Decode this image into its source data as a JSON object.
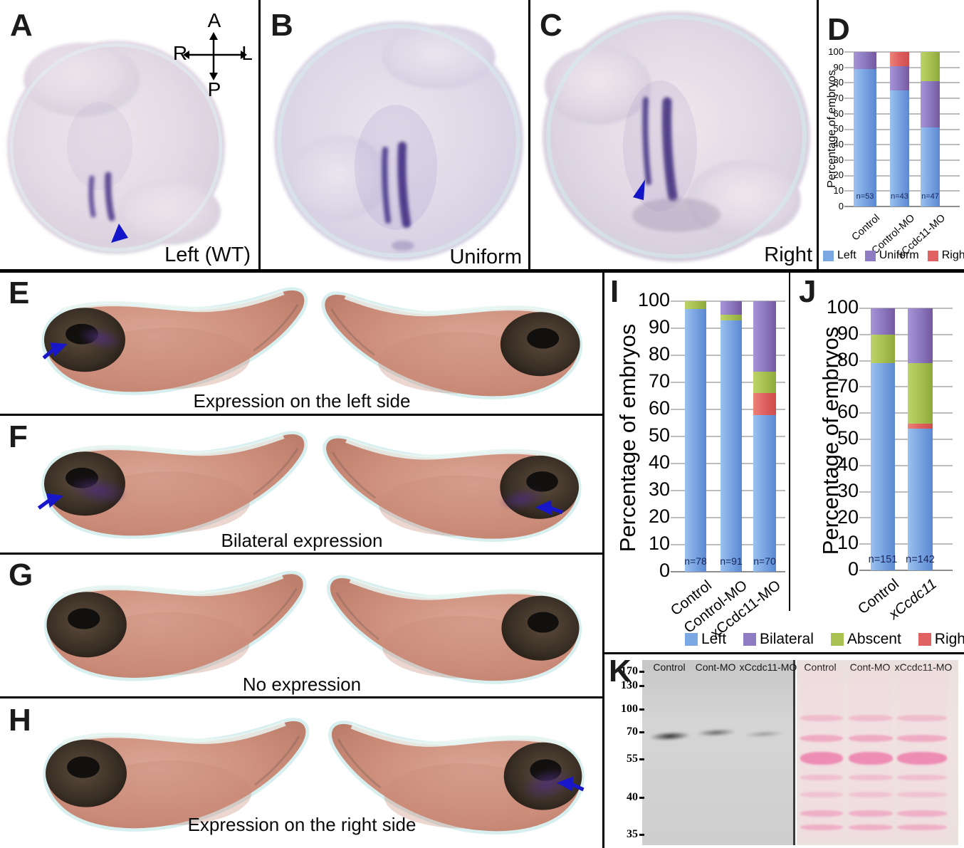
{
  "figure_panels": {
    "A": {
      "label": "A",
      "caption": "Left (WT)",
      "compass": {
        "top": "A",
        "bottom": "P",
        "left": "R",
        "right": "L"
      }
    },
    "B": {
      "label": "B",
      "caption": "Uniform"
    },
    "C": {
      "label": "C",
      "caption": "Right"
    },
    "D": {
      "label": "D"
    },
    "E": {
      "label": "E",
      "caption": "Expression on the left side"
    },
    "F": {
      "label": "F",
      "caption": "Bilateral expression"
    },
    "G": {
      "label": "G",
      "caption": "No expression"
    },
    "H": {
      "label": "H",
      "caption": "Expression on the right side"
    },
    "I": {
      "label": "I"
    },
    "J": {
      "label": "J"
    },
    "K": {
      "label": "K"
    }
  },
  "chart_data": [
    {
      "id": "chartD",
      "panel": "D",
      "type": "bar",
      "stacked": true,
      "ylabel": "Percentage of embryos",
      "ylim": [
        0,
        100
      ],
      "ytick_step": 10,
      "grid": true,
      "categories": [
        "Control",
        "Control-MO",
        "xCcdc11-MO"
      ],
      "n_labels": [
        "n=53",
        "n=43",
        "n=47"
      ],
      "series": [
        {
          "name": "Left",
          "values": [
            89,
            75,
            51
          ]
        },
        {
          "name": "Uniform",
          "values": [
            11,
            16,
            30
          ]
        },
        {
          "name": "Right",
          "values": [
            0,
            9,
            0
          ]
        },
        {
          "name": "Abscent",
          "values": [
            0,
            0,
            19
          ]
        }
      ],
      "legend": [
        "Left",
        "Uniform",
        "Right"
      ],
      "legend_position": "bottom"
    },
    {
      "id": "chartI",
      "panel": "I",
      "type": "bar",
      "stacked": true,
      "ylabel": "Percentage of embryos",
      "ylim": [
        0,
        100
      ],
      "ytick_step": 10,
      "grid": true,
      "categories": [
        "Control",
        "Control-MO",
        "xCcdc11-MO"
      ],
      "n_labels": [
        "n=78",
        "n=91",
        "n=70"
      ],
      "series": [
        {
          "name": "Left",
          "values": [
            97,
            93,
            58
          ]
        },
        {
          "name": "Right",
          "values": [
            0,
            0,
            8
          ]
        },
        {
          "name": "Abscent",
          "values": [
            3,
            2,
            8
          ]
        },
        {
          "name": "Bilateral",
          "values": [
            0,
            5,
            26
          ]
        }
      ],
      "legend_position": "shared-bottom"
    },
    {
      "id": "chartJ",
      "panel": "J",
      "type": "bar",
      "stacked": true,
      "ylabel": "Percentage of embryos",
      "ylim": [
        0,
        100
      ],
      "ytick_step": 10,
      "grid": true,
      "categories": [
        "Control",
        "xCcdc11"
      ],
      "italic_categories": [
        "xCcdc11"
      ],
      "n_labels": [
        "n=151",
        "n=142"
      ],
      "series": [
        {
          "name": "Left",
          "values": [
            79,
            54
          ]
        },
        {
          "name": "Right",
          "values": [
            0,
            2
          ]
        },
        {
          "name": "Abscent",
          "values": [
            11,
            23
          ]
        },
        {
          "name": "Bilateral",
          "values": [
            10,
            21
          ]
        }
      ],
      "legend_position": "shared-bottom"
    }
  ],
  "shared_legend": {
    "items": [
      "Left",
      "Bilateral",
      "Abscent",
      "Right"
    ]
  },
  "series_colors": {
    "Left": {
      "light": "#9bc1ee",
      "base": "#7ba7e3",
      "dark": "#5c88d2"
    },
    "Uniform": {
      "light": "#a694d6",
      "base": "#8e7cc3",
      "dark": "#75589f"
    },
    "Bilateral": {
      "light": "#a694d6",
      "base": "#8e7cc3",
      "dark": "#75589f"
    },
    "Abscent": {
      "light": "#bcd36a",
      "base": "#a9c252",
      "dark": "#8ea93c"
    },
    "Right": {
      "light": "#ec8379",
      "base": "#e06262",
      "dark": "#cf4c4c"
    }
  },
  "western_blot": {
    "mw_markers": [
      "170",
      "130",
      "100",
      "70",
      "55",
      "40",
      "35"
    ],
    "left_blot_lanes": [
      "Control",
      "Cont-MO",
      "xCcdc11-MO"
    ],
    "right_blot_lanes": [
      "Control",
      "Cont-MO",
      "xCcdc11-MO"
    ]
  }
}
